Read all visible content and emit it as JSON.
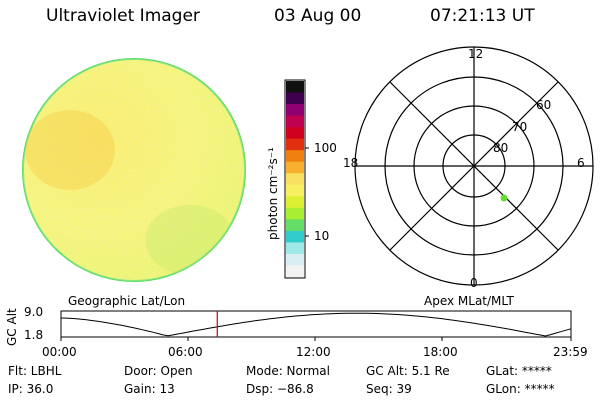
{
  "header": {
    "instrument": "Ultraviolet Imager",
    "date": "03 Aug 00",
    "time": "07:21:13 UT"
  },
  "colorbar": {
    "unit_label": "photon cm⁻²s⁻¹",
    "tick_labels": [
      "100",
      "10"
    ]
  },
  "image_labels": {
    "left": "Geographic Lat/Lon",
    "right": "Apex MLat/MLT"
  },
  "polar_plot": {
    "mlt_labels": {
      "top": "12",
      "left": "18",
      "right": "6",
      "bottom": "0"
    },
    "lat_labels": [
      "60",
      "70",
      "80"
    ],
    "marker_color": "#66dd33"
  },
  "orbit_plot": {
    "y_axis_title": "GC Alt",
    "y_ticks": [
      "9.0",
      "1.8"
    ],
    "x_ticks": [
      "00:00",
      "06:00",
      "12:00",
      "18:00",
      "23:59"
    ],
    "current_time_hours": 7.354,
    "cursor_color": "#cc0000"
  },
  "status": {
    "row1": [
      {
        "key": "flt",
        "text": "Flt: LBHL"
      },
      {
        "key": "door",
        "text": "Door: Open"
      },
      {
        "key": "mode",
        "text": "Mode: Normal"
      },
      {
        "key": "gcalt",
        "text": "GC Alt: 5.1 Re"
      },
      {
        "key": "glat",
        "text": "GLat: *****"
      }
    ],
    "row2": [
      {
        "key": "ip",
        "text": "IP: 36.0"
      },
      {
        "key": "gain",
        "text": "Gain: 13"
      },
      {
        "key": "dsp",
        "text": "Dsp:  −86.8"
      },
      {
        "key": "seq",
        "text": "Seq: 39"
      },
      {
        "key": "glon",
        "text": "GLon: *****"
      }
    ]
  }
}
